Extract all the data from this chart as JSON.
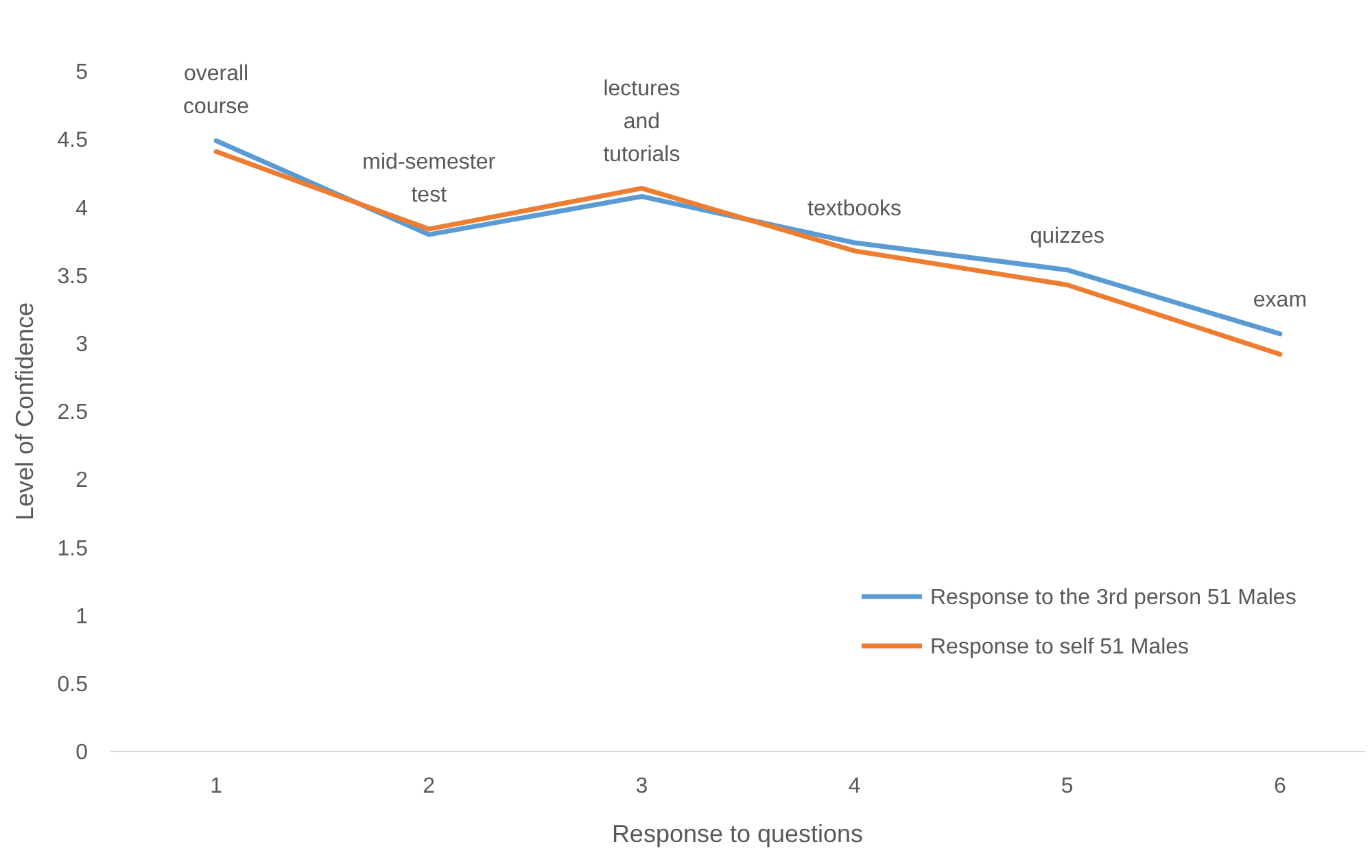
{
  "chart_data": {
    "type": "line",
    "xlabel": "Response to questions",
    "ylabel": "Level of Confidence",
    "x": [
      1,
      2,
      3,
      4,
      5,
      6
    ],
    "xlim": [
      0.5,
      6.4
    ],
    "xticks": [
      1,
      2,
      3,
      4,
      5,
      6
    ],
    "ylim": [
      0,
      5
    ],
    "yticks": [
      0,
      0.5,
      1,
      1.5,
      2,
      2.5,
      3,
      3.5,
      4,
      4.5,
      5
    ],
    "series": [
      {
        "name": "Response to the 3rd person 51 Males",
        "color": "#5b9bd5",
        "values": [
          4.49,
          3.8,
          4.08,
          3.74,
          3.54,
          3.07
        ]
      },
      {
        "name": "Response to self 51 Males",
        "color": "#ed7d31",
        "values": [
          4.41,
          3.84,
          4.14,
          3.68,
          3.43,
          2.92
        ]
      }
    ],
    "annotations": [
      {
        "text": "overall course",
        "x": 1,
        "y": 4.49
      },
      {
        "text": "mid-semester test",
        "x": 2,
        "y": 3.84
      },
      {
        "text": "lectures and tutorials",
        "x": 3,
        "y": 4.14
      },
      {
        "text": "textbooks",
        "x": 4,
        "y": 3.74
      },
      {
        "text": "quizzes",
        "x": 5,
        "y": 3.54
      },
      {
        "text": "exam",
        "x": 6,
        "y": 3.07
      }
    ],
    "legend": "bottom right",
    "grid": false,
    "marker": "none",
    "line_style": "solid"
  }
}
